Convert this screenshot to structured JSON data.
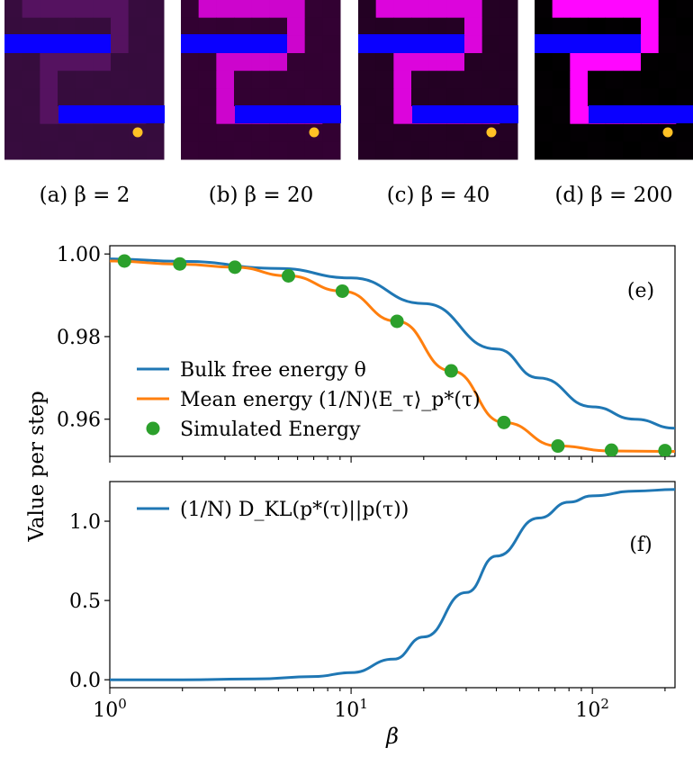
{
  "heatmaps": [
    {
      "caption": "(a) β = 2",
      "beta": 2
    },
    {
      "caption": "(b) β = 20",
      "beta": 20
    },
    {
      "caption": "(c) β = 40",
      "beta": 40
    },
    {
      "caption": "(d) β = 200",
      "beta": 200
    }
  ],
  "ylabel": "Value per step",
  "colors": {
    "bulk": "#1f77b4",
    "mean": "#ff7f0e",
    "sim": "#2ca02c",
    "wall": "#0a00ff",
    "magenta": "#ff00ff",
    "goal": "#ffc125"
  },
  "chart_data": [
    {
      "type": "line",
      "panel_label": "(e)",
      "xscale": "log",
      "xlim": [
        1,
        220
      ],
      "ylim": [
        0.951,
        1.002
      ],
      "yticks": [
        "0.96",
        "0.98",
        "1.00"
      ],
      "xticks": [
        "10^0",
        "10^1",
        "10^2"
      ],
      "legend_position": "lower-left",
      "series": [
        {
          "name": "Bulk free energy θ",
          "kind": "line",
          "x": [
            1,
            2,
            5,
            10,
            20,
            40,
            60,
            100,
            150,
            220
          ],
          "y": [
            0.9988,
            0.9982,
            0.9965,
            0.9942,
            0.988,
            0.977,
            0.97,
            0.963,
            0.96,
            0.9578
          ]
        },
        {
          "name": "Mean energy (1/N)⟨E_τ⟩_p*(τ)",
          "kind": "line",
          "x": [
            1,
            2,
            3.3,
            5.5,
            9.2,
            15.5,
            26,
            43,
            72,
            120,
            200,
            220
          ],
          "y": [
            0.9983,
            0.9975,
            0.9968,
            0.9947,
            0.991,
            0.9837,
            0.9717,
            0.9592,
            0.9535,
            0.9523,
            0.9522,
            0.9522
          ]
        },
        {
          "name": "Simulated Energy",
          "kind": "scatter",
          "x": [
            1.15,
            1.95,
            3.3,
            5.5,
            9.2,
            15.5,
            26,
            43,
            72,
            120,
            200
          ],
          "y": [
            0.9983,
            0.9976,
            0.9968,
            0.9947,
            0.991,
            0.9837,
            0.9717,
            0.9592,
            0.9535,
            0.9525,
            0.9524
          ]
        }
      ]
    },
    {
      "type": "line",
      "panel_label": "(f)",
      "xscale": "log",
      "xlabel": "β",
      "xlim": [
        1,
        220
      ],
      "ylim": [
        -0.05,
        1.25
      ],
      "yticks": [
        "0.0",
        "0.5",
        "1.0"
      ],
      "xticks": [
        "10^0",
        "10^1",
        "10^2"
      ],
      "legend_position": "upper-left",
      "series": [
        {
          "name": "(1/N) D_KL(p*(τ)||p(τ))",
          "kind": "line",
          "x": [
            1,
            2,
            4,
            7,
            10,
            15,
            20,
            30,
            40,
            60,
            80,
            100,
            150,
            220
          ],
          "y": [
            0.0,
            0.0,
            0.005,
            0.02,
            0.045,
            0.13,
            0.27,
            0.55,
            0.78,
            1.02,
            1.12,
            1.16,
            1.19,
            1.2
          ]
        }
      ]
    }
  ]
}
